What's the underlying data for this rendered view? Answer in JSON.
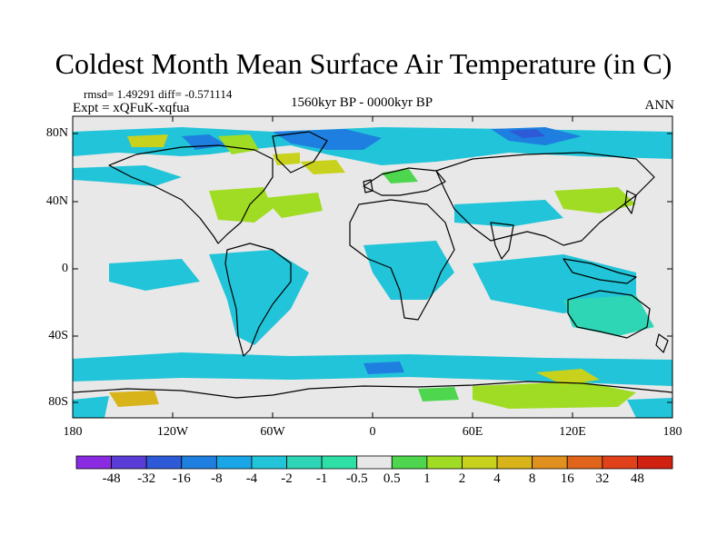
{
  "title": "Coldest Month Mean Surface Air Temperature (in C)",
  "stats": "rmsd= 1.49291 diff= -0.571114",
  "experiment": "Expt = xQFuK-xqfua",
  "period": "1560kyr BP - 0000kyr BP",
  "season": "ANN",
  "lat_labels": [
    "80N",
    "40N",
    "0",
    "40S",
    "80S"
  ],
  "lon_labels": [
    "180",
    "120W",
    "60W",
    "0",
    "60E",
    "120E",
    "180"
  ],
  "colorbar": {
    "labels": [
      "-48",
      "-32",
      "-16",
      "-8",
      "-4",
      "-2",
      "-1",
      "-0.5",
      "0.5",
      "1",
      "2",
      "4",
      "8",
      "16",
      "32",
      "48"
    ],
    "colors": [
      "#8a2be2",
      "#5a3cd6",
      "#2e5ad8",
      "#1e7fe0",
      "#1aa6e6",
      "#21c4d8",
      "#2ed6b6",
      "#2ee0a6",
      "#e8e8e8",
      "#4ed64e",
      "#a0dc24",
      "#c8d21c",
      "#d8b41a",
      "#e0901e",
      "#e0641a",
      "#e0401a",
      "#d02010"
    ]
  }
}
